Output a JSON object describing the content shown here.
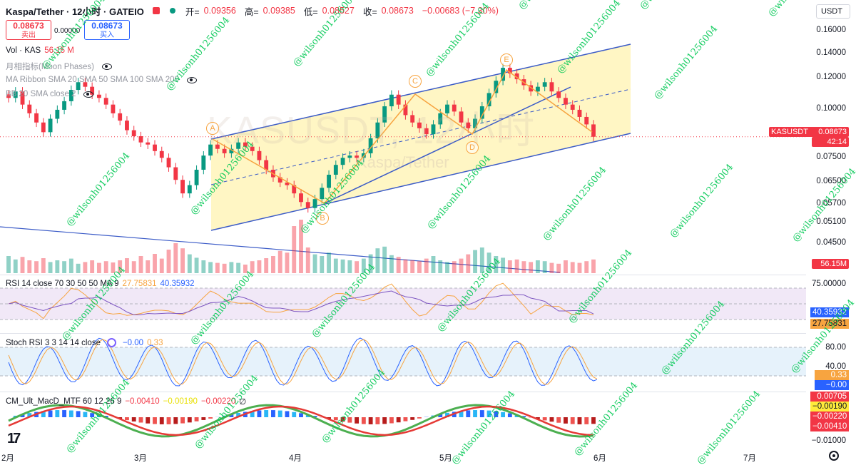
{
  "header": {
    "title": "Kaspa/Tether · 12小时 · GATEIO",
    "open_label": "开=",
    "open_value": "0.09356",
    "high_label": "高=",
    "high_value": "0.09385",
    "low_label": "低=",
    "low_value": "0.08527",
    "close_label": "收=",
    "close_value": "0.08673",
    "change": "−0.00683 (−7.30%)",
    "currency_button": "USDT"
  },
  "quote": {
    "sell_price": "0.08673",
    "sell_label": "卖出",
    "spread": "0.00000",
    "buy_price": "0.08673",
    "buy_label": "买入"
  },
  "legends": {
    "vol_name": "Vol · KAS",
    "vol_value": "56.15 M",
    "moon": "月相指标(Moon Phases)",
    "ma_ribbon": "MA Ribbon SMA 20 SMA 50 SMA 100 SMA 200",
    "bb": "BB 20 SMA close 2",
    "rsi_name": "RSI 14 close 70 30 50 50 MA 9",
    "rsi_v1": "27.75831",
    "rsi_v2": "40.35932",
    "stoch_name": "Stoch RSI 3 3 14 14 close",
    "stoch_v1": "−0.00",
    "stoch_v2": "0.33",
    "macd_name": "CM_Ult_MacD_MTF 60 12 26 9",
    "macd_v1": "−0.00410",
    "macd_v2": "−0.00190",
    "macd_v3": "−0.00220",
    "macd_v4": "∅"
  },
  "watermark": {
    "main": "KASUSDT, 12小时",
    "sub": "Kaspa/Tether"
  },
  "price_axis": [
    "0.16000",
    "0.14000",
    "0.12000",
    "0.10000",
    "0.08673",
    "0.07500",
    "0.06500",
    "0.05700",
    "0.05100",
    "0.04500"
  ],
  "price_tag_symbol": "KASUSDT",
  "price_tag_value": "0.08673",
  "price_tag_countdown": "42:14",
  "vol_tag": "56.15M",
  "rsi_axis": [
    "75.00000",
    "40.35932",
    "27.75831"
  ],
  "stoch_axis": [
    "80.00",
    "40.00",
    "0.33",
    "−0.00"
  ],
  "macd_axis": [
    "0.00705",
    "−0.00190",
    "−0.00220",
    "−0.00410",
    "−0.01000"
  ],
  "time_axis": [
    "2月",
    "3月",
    "4月",
    "5月",
    "6月",
    "7月"
  ],
  "wave_points": [
    "A",
    "B",
    "C",
    "D",
    "E"
  ],
  "stamp_text": "@wilsonh01256004",
  "logo_text": "17",
  "colors": {
    "up": "#089981",
    "down": "#f23645",
    "channel_fill": "#fff3b0",
    "channel_line": "#3b5bc7",
    "wave": "#f7a440",
    "rsi_band": "#f1e8f7",
    "stoch_band": "#e6f2fb"
  },
  "chart_data": {
    "type": "candlestick",
    "title": "Kaspa/Tether · 12小时 · GATEIO",
    "x": [
      "2月",
      "3月",
      "4月",
      "5月",
      "6月",
      "7月"
    ],
    "ohlc_last": {
      "open": 0.09356,
      "high": 0.09385,
      "low": 0.08527,
      "close": 0.08673,
      "change": -0.00683,
      "change_pct": -7.3
    },
    "close_series": [
      0.108,
      0.112,
      0.104,
      0.099,
      0.094,
      0.089,
      0.096,
      0.101,
      0.106,
      0.113,
      0.118,
      0.115,
      0.11,
      0.108,
      0.104,
      0.099,
      0.095,
      0.09,
      0.087,
      0.084,
      0.083,
      0.08,
      0.077,
      0.073,
      0.068,
      0.063,
      0.066,
      0.072,
      0.078,
      0.083,
      0.081,
      0.079,
      0.081,
      0.084,
      0.082,
      0.08,
      0.076,
      0.072,
      0.069,
      0.067,
      0.066,
      0.063,
      0.06,
      0.058,
      0.061,
      0.065,
      0.07,
      0.074,
      0.077,
      0.078,
      0.077,
      0.079,
      0.086,
      0.094,
      0.103,
      0.11,
      0.104,
      0.098,
      0.094,
      0.091,
      0.088,
      0.093,
      0.099,
      0.104,
      0.1,
      0.094,
      0.091,
      0.096,
      0.103,
      0.111,
      0.119,
      0.128,
      0.124,
      0.12,
      0.116,
      0.112,
      0.115,
      0.118,
      0.112,
      0.108,
      0.104,
      0.101,
      0.097,
      0.093,
      0.08673
    ],
    "volume_series": [
      40,
      32,
      38,
      30,
      28,
      35,
      26,
      30,
      28,
      34,
      22,
      26,
      30,
      24,
      28,
      25,
      30,
      35,
      28,
      40,
      30,
      45,
      34,
      55,
      70,
      58,
      44,
      36,
      30,
      26,
      24,
      22,
      26,
      24,
      20,
      28,
      30,
      35,
      40,
      52,
      48,
      110,
      125,
      60,
      44,
      40,
      48,
      34,
      32,
      30,
      28,
      34,
      44,
      58,
      62,
      42,
      38,
      32,
      30,
      28,
      34,
      40,
      30,
      26,
      28,
      34,
      44,
      54,
      60,
      48,
      40,
      36,
      30,
      32,
      28,
      26,
      30,
      28,
      24,
      22,
      30,
      26,
      24,
      28,
      32
    ],
    "ylim": [
      0.04,
      0.165
    ],
    "y_scale": "log",
    "rsi": {
      "value": 27.75831,
      "ma": 40.35932,
      "bands": [
        30,
        70
      ]
    },
    "stoch_rsi": {
      "k": -0.0,
      "d": 0.33,
      "bands": [
        20,
        80
      ]
    },
    "macd": {
      "macd": -0.0041,
      "signal": -0.0019,
      "hist": -0.0022
    }
  }
}
